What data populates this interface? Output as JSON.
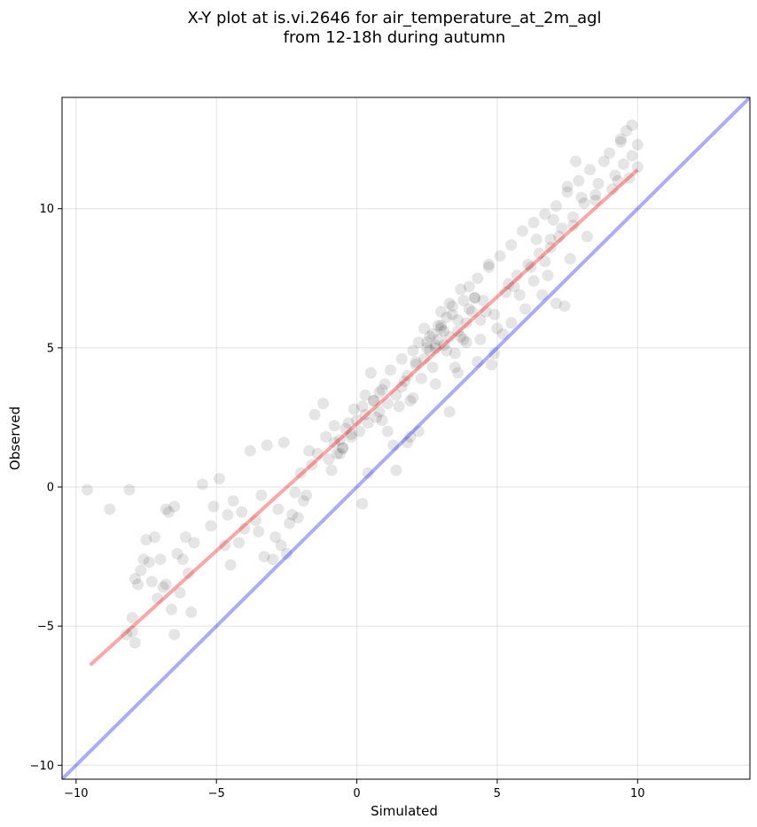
{
  "chart_data": {
    "type": "scatter",
    "title_lines": [
      "X-Y plot at is.vi.2646 for air_temperature_at_2m_agl",
      "from 12-18h during autumn"
    ],
    "xlabel": "Simulated",
    "ylabel": "Observed",
    "xlim": [
      -10.5,
      14
    ],
    "ylim": [
      -10.5,
      14
    ],
    "x_ticks": [
      -10,
      -5,
      0,
      5,
      10
    ],
    "y_ticks": [
      -10,
      -5,
      0,
      5,
      10
    ],
    "x_tick_labels": [
      "−10",
      "−5",
      "0",
      "5",
      "10"
    ],
    "y_tick_labels": [
      "−10",
      "−5",
      "0",
      "5",
      "10"
    ],
    "grid": true,
    "point_color": "#000000",
    "point_alpha": 0.1,
    "fit_line": {
      "x": [
        -9.5,
        10
      ],
      "y": [
        -6.4,
        11.4
      ],
      "color": "#ff0000",
      "alpha": 0.35
    },
    "identity_line": {
      "x": [
        -10.5,
        14
      ],
      "y": [
        -10.5,
        14
      ],
      "color": "#0000ff",
      "alpha": 0.33
    },
    "points": {
      "x": [
        -9.6,
        -8.8,
        -8.1,
        -8.2,
        -8.0,
        -7.9,
        -7.8,
        -7.6,
        -7.5,
        -7.3,
        -7.2,
        -7.0,
        -6.9,
        -6.7,
        -6.5,
        -6.4,
        -6.3,
        -6.1,
        -6.0,
        -5.8,
        -7.9,
        -7.7,
        -7.4,
        -7.1,
        -6.8,
        -6.6,
        -6.2,
        -5.9,
        -8.0,
        -6.8,
        -6.5,
        -5.5,
        -5.1,
        -4.9,
        -4.6,
        -4.4,
        -4.2,
        -4.0,
        -3.8,
        -3.6,
        -3.4,
        -3.2,
        -3.0,
        -2.8,
        -2.6,
        -2.4,
        -2.2,
        -2.0,
        -1.8,
        -1.6,
        -1.4,
        -5.2,
        -4.7,
        -4.1,
        -3.5,
        -2.9,
        -2.5,
        -2.1,
        -1.5,
        -1.0,
        -0.8,
        -0.6,
        -0.4,
        -0.2,
        0.0,
        0.2,
        0.4,
        0.6,
        0.8,
        -1.2,
        -0.9,
        -0.5,
        -0.1,
        0.3,
        0.5,
        0.7,
        1.0,
        1.2,
        1.4,
        1.6,
        1.8,
        2.0,
        2.2,
        2.4,
        2.6,
        2.8,
        3.0,
        3.2,
        3.4,
        3.6,
        3.8,
        4.0,
        4.2,
        4.4,
        1.1,
        1.3,
        1.5,
        1.7,
        1.9,
        2.1,
        2.3,
        2.5,
        2.7,
        2.9,
        3.1,
        3.3,
        3.5,
        3.7,
        3.9,
        4.1,
        4.3,
        4.5,
        4.7,
        4.9,
        5.1,
        5.3,
        5.5,
        5.7,
        5.9,
        6.1,
        6.3,
        6.5,
        6.7,
        6.9,
        7.1,
        7.3,
        7.5,
        7.7,
        7.9,
        8.1,
        8.3,
        8.5,
        8.8,
        9.0,
        9.2,
        9.4,
        9.6,
        9.8,
        10.0,
        2.5,
        2.7,
        2.9,
        3.1,
        3.3,
        2.6,
        2.8,
        3.0,
        3.2,
        2.4,
        3.4,
        3.6,
        3.8,
        4.0,
        4.2,
        -0.7,
        -0.5,
        -0.8,
        -0.6,
        -0.3,
        0.1,
        0.3,
        0.6,
        0.9,
        1.1,
        1.6,
        2.1,
        3.9,
        4.6,
        5.4,
        6.2,
        6.9,
        7.7,
        8.5,
        9.3,
        9.5,
        7.5,
        7.8,
        5.0,
        4.8,
        6.6,
        7.4,
        1.9,
        0.4,
        -1.9,
        -3.3,
        -4.5,
        0.9,
        2.8,
        3.6,
        4.3,
        5.2,
        6.0,
        6.8,
        7.6,
        8.2,
        9.1,
        9.7,
        10.0,
        6.4,
        7.0,
        5.6,
        3.3,
        2.2,
        1.4,
        -2.3,
        -2.7,
        -1.7,
        0.2,
        1.8,
        3.7,
        4.9,
        5.8,
        6.7,
        7.2,
        8.0,
        8.6,
        9.4,
        9.8,
        7.1,
        6.3,
        5.5,
        4.4,
        3.5,
        2.0,
        0.8,
        -1.1,
        -0.2,
        3.0,
        4.7
      ],
      "y": [
        -0.1,
        -0.8,
        -0.1,
        -5.3,
        -4.7,
        -5.6,
        -3.5,
        -2.6,
        -1.9,
        -3.4,
        -1.8,
        -2.6,
        -3.6,
        -0.9,
        -5.3,
        -2.4,
        -3.8,
        -1.8,
        -3.1,
        -2.0,
        -3.3,
        -3.0,
        -2.7,
        -4.0,
        -3.5,
        -4.4,
        -2.6,
        -4.5,
        -5.2,
        -0.8,
        -0.7,
        0.1,
        -0.7,
        0.3,
        -1.0,
        -0.5,
        -2.0,
        -1.5,
        1.3,
        -1.2,
        -0.3,
        1.5,
        -2.6,
        -0.8,
        1.6,
        -1.3,
        -0.2,
        0.5,
        -0.3,
        0.8,
        1.2,
        -1.4,
        -2.1,
        -0.9,
        -1.6,
        -1.8,
        -2.4,
        -1.1,
        2.6,
        1.0,
        1.6,
        1.2,
        2.1,
        1.8,
        2.4,
        2.9,
        2.3,
        3.1,
        3.4,
        3.0,
        0.6,
        1.4,
        2.8,
        3.3,
        4.1,
        2.5,
        3.7,
        4.2,
        3.3,
        4.6,
        4.0,
        4.9,
        5.2,
        4.6,
        5.4,
        5.1,
        5.7,
        4.9,
        6.2,
        5.6,
        5.3,
        6.4,
        6.8,
        6.0,
        2.0,
        1.5,
        2.9,
        3.8,
        3.1,
        4.4,
        3.9,
        5.0,
        4.3,
        5.8,
        5.1,
        6.6,
        4.8,
        7.1,
        5.9,
        6.3,
        7.5,
        6.7,
        7.9,
        6.2,
        8.3,
        7.0,
        8.7,
        7.6,
        9.2,
        8.0,
        9.5,
        8.4,
        9.8,
        8.9,
        10.1,
        9.3,
        10.6,
        9.7,
        11.0,
        10.2,
        11.4,
        10.5,
        11.7,
        12.0,
        11.2,
        12.4,
        12.8,
        11.9,
        12.3,
        5.2,
        5.5,
        5.3,
        5.6,
        5.4,
        4.9,
        5.0,
        5.8,
        6.1,
        5.7,
        6.5,
        6.0,
        6.7,
        7.2,
        6.8,
        1.2,
        1.4,
        2.2,
        1.7,
        2.3,
        2.0,
        2.6,
        3.1,
        3.5,
        3.0,
        3.6,
        4.5,
        5.2,
        6.3,
        7.3,
        7.9,
        8.6,
        9.4,
        10.3,
        11.0,
        11.6,
        10.8,
        11.7,
        5.7,
        4.4,
        6.9,
        6.5,
        1.8,
        0.5,
        -0.5,
        -2.5,
        -2.8,
        2.4,
        3.7,
        4.1,
        4.5,
        5.5,
        6.4,
        7.6,
        8.2,
        9.0,
        10.7,
        11.1,
        11.5,
        8.9,
        9.6,
        7.2,
        2.7,
        2.0,
        0.6,
        -1.0,
        -2.1,
        1.3,
        -0.6,
        1.6,
        5.4,
        4.8,
        6.9,
        8.1,
        9.0,
        10.4,
        10.9,
        12.5,
        13.0,
        6.6,
        7.4,
        5.9,
        5.3,
        4.3,
        3.2,
        2.7,
        1.8,
        1.9,
        6.3,
        8.0
      ]
    }
  }
}
